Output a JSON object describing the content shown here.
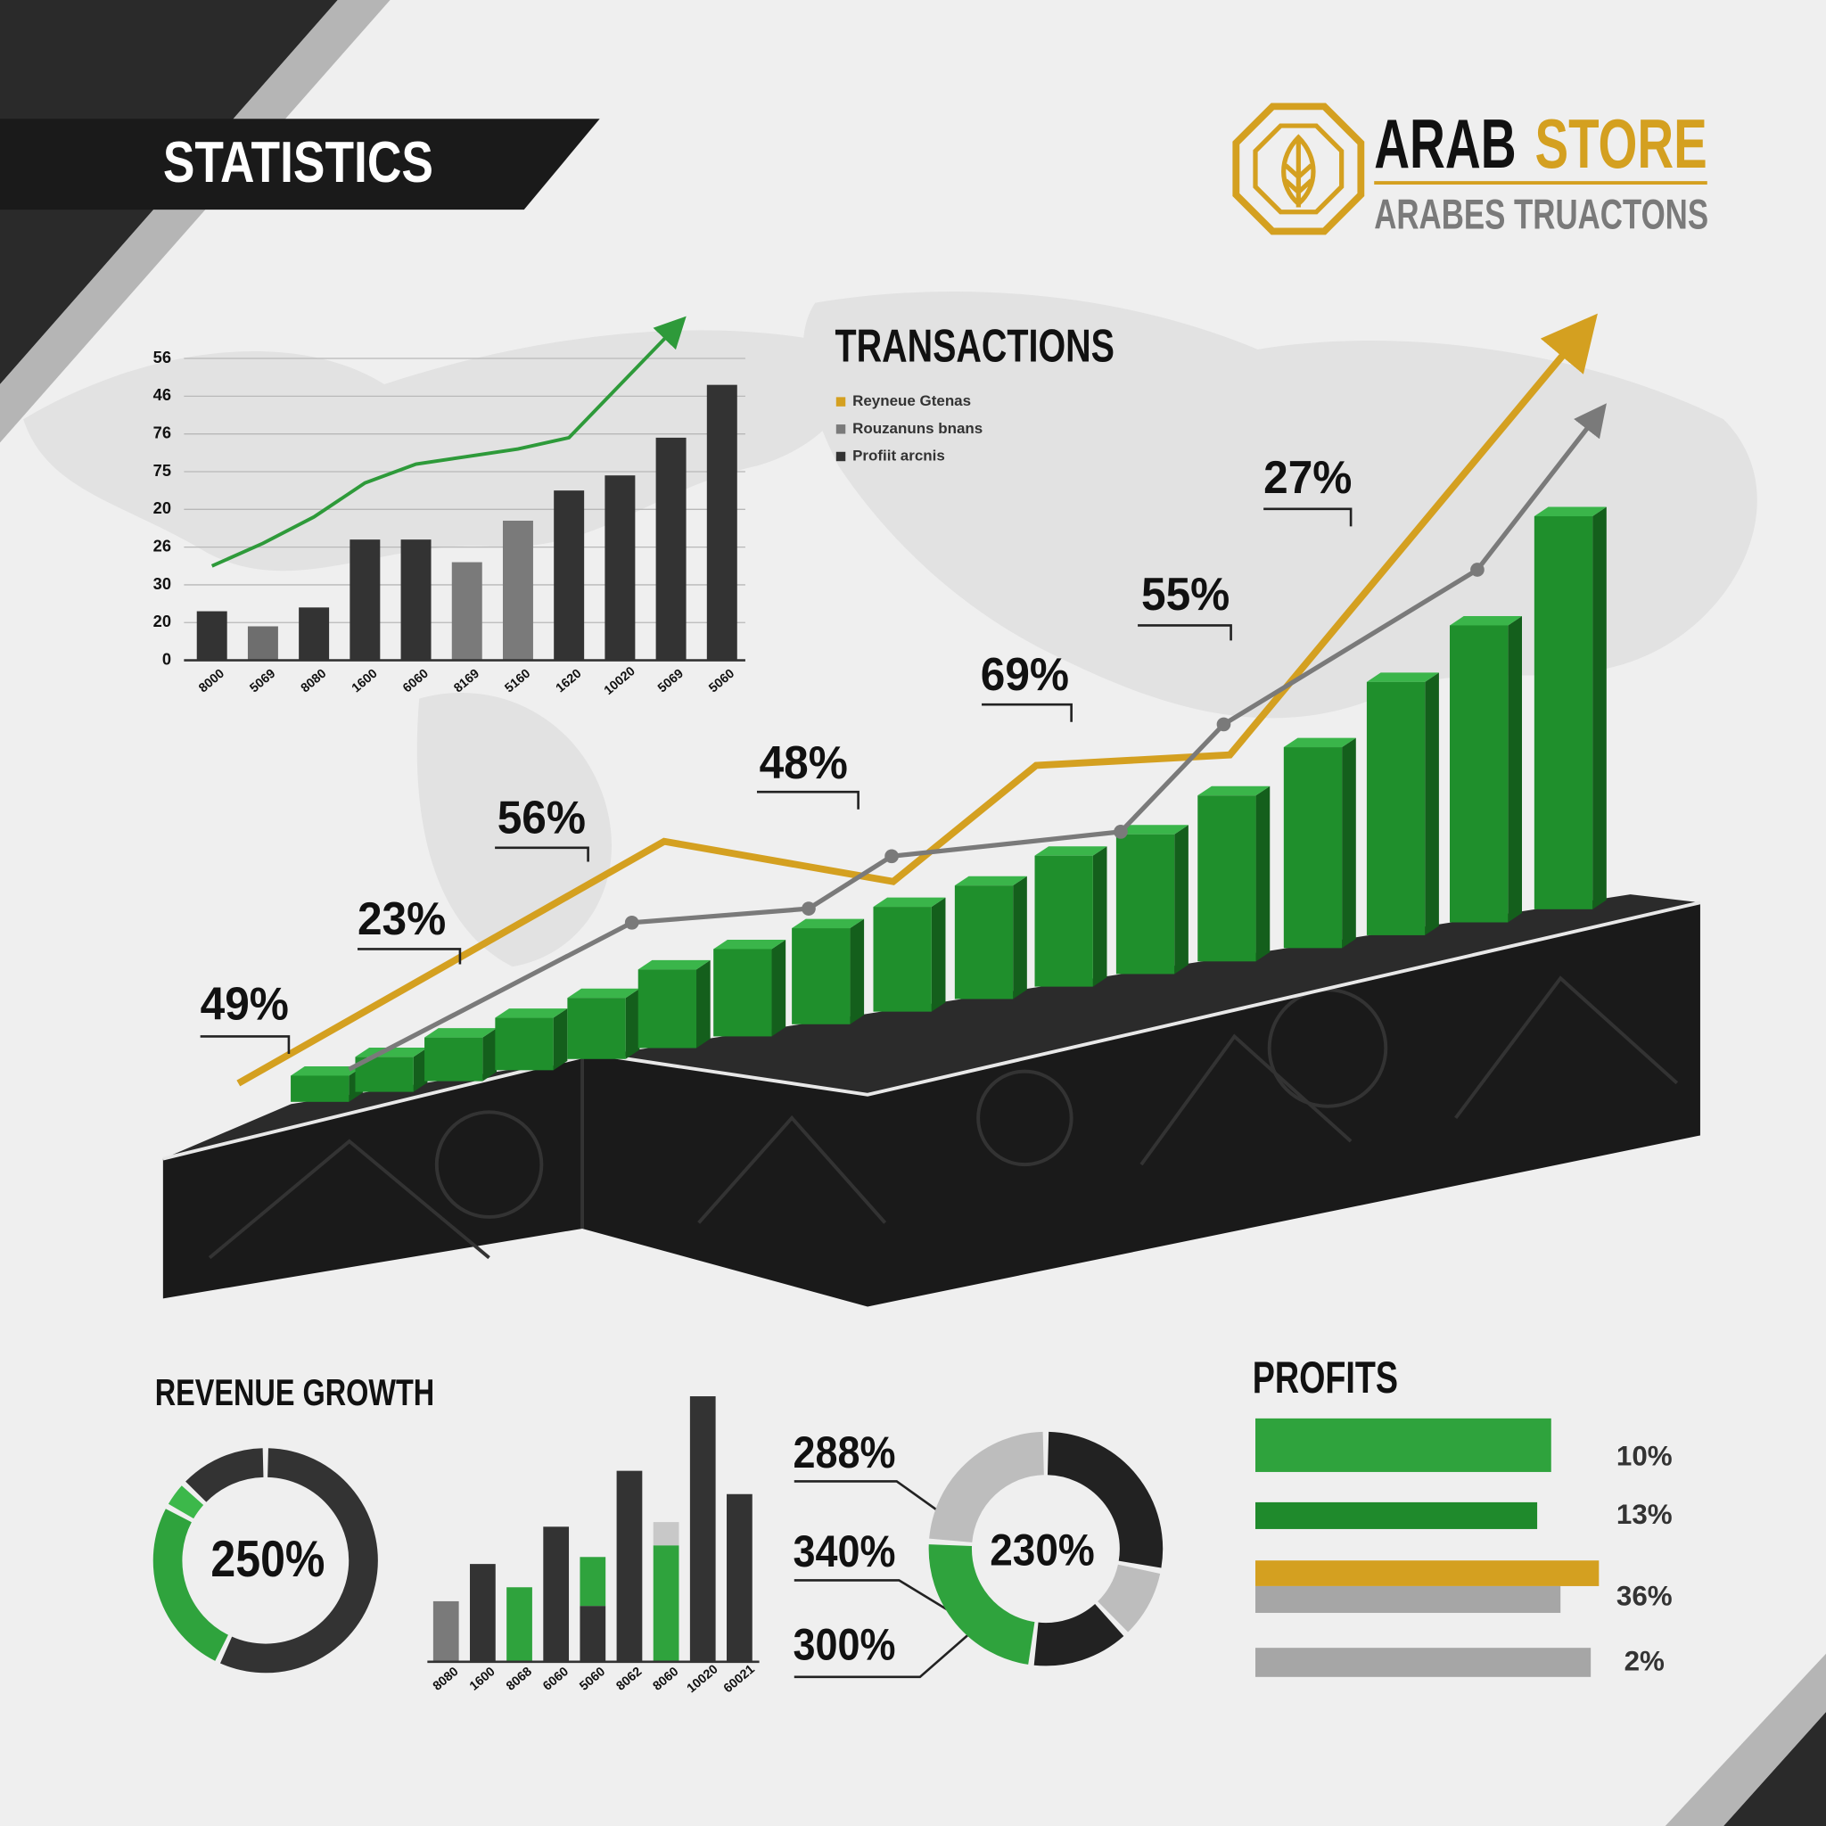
{
  "header": {
    "title": "STATISTICS"
  },
  "logo": {
    "brand": "ARAB",
    "brand_accent": "STORE",
    "tagline": "ARABES TRUACTONS"
  },
  "chart_data": [
    {
      "type": "bar",
      "categories": [
        "8000",
        "5069",
        "8080",
        "1600",
        "6060",
        "8169",
        "5160",
        "1620",
        "10020",
        "5069",
        "5060"
      ],
      "series": [
        {
          "type": "bar",
          "colors": [
            "#333333",
            "#6e6e6e",
            "#333333",
            "#333333",
            "#333333",
            "#7a7a7a",
            "#7a7a7a",
            "#333333",
            "#333333",
            "#333333",
            "#333333"
          ],
          "values": [
            13,
            9,
            14,
            32,
            32,
            26,
            37,
            45,
            49,
            59,
            73
          ]
        },
        {
          "type": "line",
          "color": "#2e9a3a",
          "values": [
            25,
            31,
            38,
            47,
            52,
            54,
            56,
            59,
            73,
            87,
            null
          ]
        }
      ],
      "ylim": [
        0,
        95
      ],
      "yticks": [
        0,
        {
          "value": 10,
          "label": "20"
        },
        {
          "value": 20,
          "label": "30"
        },
        {
          "value": 30,
          "label": "26"
        },
        {
          "value": 40,
          "label": "20"
        },
        {
          "value": 50,
          "label": "75"
        },
        {
          "value": 60,
          "label": "76"
        },
        {
          "value": 70,
          "label": "46"
        },
        {
          "value": 80,
          "label": "56"
        }
      ],
      "grid": true
    },
    {
      "type": "bar3d",
      "title": "TRANSACTIONS",
      "xlim": [
        0,
        100
      ],
      "ylim": [
        0,
        100
      ],
      "series": [
        {
          "name": "Reyneue Gtenas",
          "type": "line",
          "color": "#d4a020",
          "x": [
            4.9,
            32.6,
            47.5,
            56.8,
            69.4,
            91.7
          ],
          "values": [
            9.3,
            37,
            32.4,
            45.7,
            46.9,
            94
          ]
        },
        {
          "name": "Rouzanuns bnans",
          "type": "line",
          "color": "#7a7a7a",
          "x": [
            12.1,
            30.5,
            42,
            47.4,
            62.3,
            69,
            85.5,
            93
          ],
          "values": [
            10.9,
            27.7,
            29.3,
            35.3,
            38.1,
            50.4,
            68.1,
            85.1
          ]
        },
        {
          "name": "Profiit arcnis",
          "type": "bar",
          "color": "#1f8f2c",
          "legend_color": "#333333",
          "x": [
            10.2,
            14.4,
            18.9,
            23.5,
            28.2,
            32.8,
            37.7,
            42.8,
            48.1,
            53.4,
            58.6,
            63.9,
            69.2,
            74.8,
            80.2,
            85.6,
            91.1
          ],
          "values": [
            3,
            4,
            5,
            6,
            7,
            9,
            10,
            11,
            12,
            13,
            15,
            16,
            19,
            23,
            29,
            34,
            45
          ]
        }
      ],
      "annotations": [
        "49%",
        "23%",
        "56%",
        "48%",
        "69%",
        "55%",
        "27%"
      ]
    },
    {
      "type": "donut",
      "title": "REVENUE GROWTH",
      "center_label": "250%",
      "values": [
        57,
        26,
        4,
        13
      ],
      "colors": [
        "#333333",
        "#2fa33d",
        "#3cb84a",
        "#333333"
      ]
    },
    {
      "type": "bar",
      "categories": [
        "8080",
        "1600",
        "8068",
        "6060",
        "5060",
        "8062",
        "8060",
        "10020",
        "60021"
      ],
      "ylim": [
        0,
        120
      ],
      "series": [
        {
          "colors": [
            "#7a7a7a",
            "#333333",
            "#2fa33d",
            "#333333",
            "#333333",
            "#333333",
            "#2fa33d",
            "#333333",
            "#333333"
          ],
          "values": [
            26,
            42,
            32,
            58,
            24,
            82,
            50,
            114,
            72
          ]
        },
        {
          "colors": [
            null,
            null,
            null,
            null,
            "#2fa33d",
            null,
            "#c8c8c8",
            null,
            null
          ],
          "values": [
            null,
            null,
            null,
            null,
            21,
            null,
            10,
            null,
            null
          ]
        }
      ]
    },
    {
      "type": "donut",
      "center_label": "230%",
      "annotations": [
        "288%",
        "340%",
        "300%"
      ],
      "values": [
        28,
        10,
        14,
        24,
        24
      ],
      "colors": [
        "#222222",
        "#bdbdbd",
        "#222222",
        "#2fa33d",
        "#bdbdbd"
      ]
    },
    {
      "type": "hbar",
      "title": "PROFITS",
      "xlim": [
        0,
        300
      ],
      "values": [
        254,
        242,
        295,
        262,
        288
      ],
      "colors": [
        "#2fa33d",
        "#1f8a2c",
        "#d4a020",
        "#a6a6a6",
        "#a6a6a6"
      ],
      "annotations": [
        "10%",
        "13%",
        "36%",
        "2%"
      ]
    }
  ]
}
